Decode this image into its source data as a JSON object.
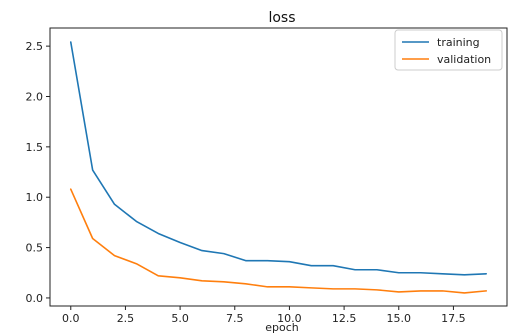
{
  "chart_data": {
    "type": "line",
    "title": "loss",
    "xlabel": "epoch",
    "ylabel": "",
    "xlim": [
      -0.95,
      19.95
    ],
    "ylim": [
      -0.08,
      2.68
    ],
    "xticks": [
      0.0,
      2.5,
      5.0,
      7.5,
      10.0,
      12.5,
      15.0,
      17.5
    ],
    "xtick_labels": [
      "0.0",
      "2.5",
      "5.0",
      "7.5",
      "10.0",
      "12.5",
      "15.0",
      "17.5"
    ],
    "yticks": [
      0.0,
      0.5,
      1.0,
      1.5,
      2.0,
      2.5
    ],
    "ytick_labels": [
      "0.0",
      "0.5",
      "1.0",
      "1.5",
      "2.0",
      "2.5"
    ],
    "grid": false,
    "legend_position": "top-right",
    "x": [
      0,
      1,
      2,
      3,
      4,
      5,
      6,
      7,
      8,
      9,
      10,
      11,
      12,
      13,
      14,
      15,
      16,
      17,
      18,
      19
    ],
    "series": [
      {
        "name": "training",
        "color": "#1f77b4",
        "values": [
          2.54,
          1.27,
          0.93,
          0.76,
          0.64,
          0.55,
          0.47,
          0.44,
          0.37,
          0.37,
          0.36,
          0.32,
          0.32,
          0.28,
          0.28,
          0.25,
          0.25,
          0.24,
          0.23,
          0.24
        ]
      },
      {
        "name": "validation",
        "color": "#ff7f0e",
        "values": [
          1.08,
          0.59,
          0.42,
          0.34,
          0.22,
          0.2,
          0.17,
          0.16,
          0.14,
          0.11,
          0.11,
          0.1,
          0.09,
          0.09,
          0.08,
          0.06,
          0.07,
          0.07,
          0.05,
          0.07
        ]
      }
    ]
  }
}
